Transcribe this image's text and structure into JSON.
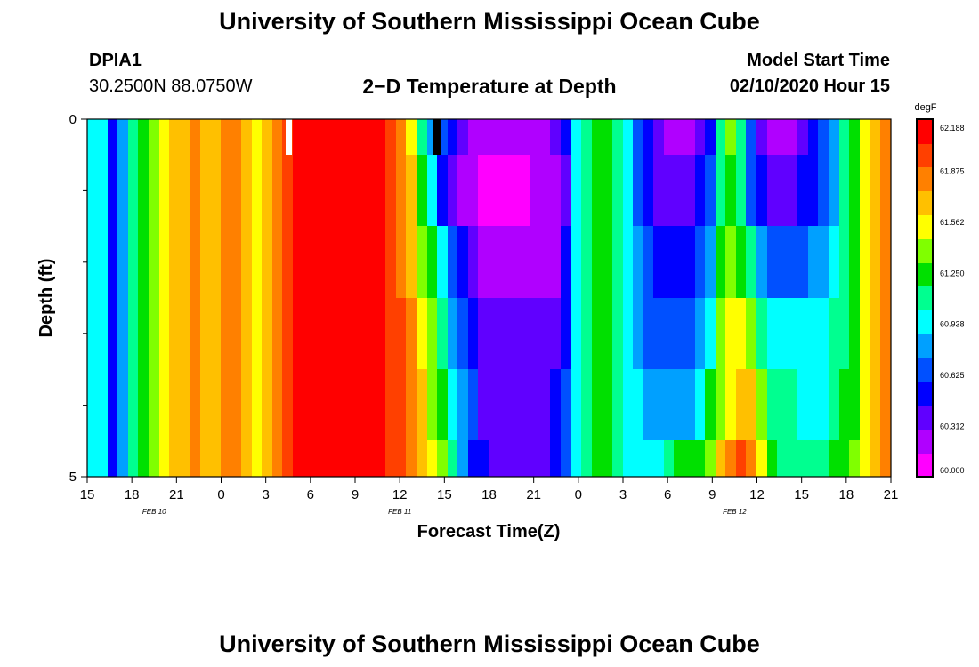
{
  "header": {
    "title": "University of Southern Mississippi Ocean Cube",
    "station_id": "DPIA1",
    "coords": "30.2500N 88.0750W",
    "subtitle": "2−D Temperature at Depth",
    "model_label": "Model Start Time",
    "model_time": "02/10/2020 Hour 15"
  },
  "footer": {
    "title": "University of Southern Mississippi Ocean Cube"
  },
  "chart_data": {
    "type": "heatmap",
    "title": "2−D Temperature at Depth",
    "xlabel": "Forecast Time(Z)",
    "ylabel": "Depth (ft)",
    "x_tick_labels": [
      "15",
      "18",
      "21",
      "0",
      "3",
      "6",
      "9",
      "12",
      "15",
      "18",
      "21",
      "0",
      "3",
      "6",
      "9",
      "12",
      "15",
      "18",
      "21"
    ],
    "x_ticks_hours": [
      0,
      3,
      6,
      9,
      12,
      15,
      18,
      21,
      24,
      27,
      30,
      33,
      36,
      39,
      42,
      45,
      48,
      51,
      54
    ],
    "x_range_hours": [
      0,
      54
    ],
    "date_labels": [
      {
        "text": "FEB 10",
        "hour": 4.5
      },
      {
        "text": "FEB 11",
        "hour": 21
      },
      {
        "text": "FEB 12",
        "hour": 43.5
      }
    ],
    "y_tick_labels": [
      "0",
      "5"
    ],
    "y_range": [
      0,
      5
    ],
    "y_minor_ticks": [
      1,
      2,
      3,
      4
    ],
    "depth_levels": [
      0,
      0.5,
      1.5,
      2.5,
      3.5,
      4.5
    ],
    "colorbar": {
      "unit": "degF",
      "min": 60.0,
      "max": 62.188,
      "tick_labels": [
        "62.188",
        "61.875",
        "61.562",
        "61.250",
        "60.938",
        "60.625",
        "60.312",
        "60.000"
      ],
      "tick_values": [
        62.188,
        61.875,
        61.562,
        61.25,
        60.938,
        60.625,
        60.312,
        60.0
      ],
      "colors": [
        "#ff00ff",
        "#b000ff",
        "#6000ff",
        "#0000ff",
        "#0050ff",
        "#00a0ff",
        "#00ffff",
        "#00ff90",
        "#00e000",
        "#80ff00",
        "#ffff00",
        "#ffc000",
        "#ff8000",
        "#ff4000",
        "#ff0000"
      ]
    },
    "columns": [
      [
        6,
        6,
        6,
        6,
        6,
        6
      ],
      [
        6,
        6,
        6,
        6,
        6,
        6
      ],
      [
        3,
        3,
        3,
        3,
        3,
        3
      ],
      [
        5,
        5,
        5,
        5,
        5,
        5
      ],
      [
        7,
        7,
        7,
        7,
        7,
        7
      ],
      [
        8,
        8,
        8,
        8,
        8,
        8
      ],
      [
        9,
        9,
        9,
        9,
        9,
        9
      ],
      [
        10,
        10,
        10,
        10,
        10,
        10
      ],
      [
        11,
        11,
        11,
        11,
        11,
        11
      ],
      [
        11,
        11,
        11,
        11,
        11,
        11
      ],
      [
        12,
        12,
        12,
        12,
        12,
        12
      ],
      [
        11,
        11,
        11,
        11,
        11,
        11
      ],
      [
        11,
        11,
        11,
        11,
        11,
        11
      ],
      [
        12,
        12,
        12,
        12,
        12,
        12
      ],
      [
        12,
        12,
        12,
        12,
        12,
        12
      ],
      [
        11,
        11,
        11,
        11,
        11,
        11
      ],
      [
        10,
        10,
        10,
        10,
        10,
        10
      ],
      [
        11,
        11,
        11,
        11,
        11,
        11
      ],
      [
        12,
        12,
        12,
        12,
        12,
        12
      ],
      [
        13,
        13,
        13,
        13,
        13,
        13
      ],
      [
        14,
        14,
        14,
        14,
        14,
        14
      ],
      [
        14,
        14,
        14,
        14,
        14,
        14
      ],
      [
        14,
        14,
        14,
        14,
        14,
        14
      ],
      [
        14,
        14,
        14,
        14,
        14,
        14
      ],
      [
        14,
        14,
        14,
        14,
        14,
        14
      ],
      [
        14,
        14,
        14,
        14,
        14,
        14
      ],
      [
        14,
        14,
        14,
        14,
        14,
        14
      ],
      [
        14,
        14,
        14,
        14,
        14,
        14
      ],
      [
        14,
        14,
        14,
        14,
        14,
        14
      ],
      [
        13,
        13,
        13,
        13,
        13,
        13
      ],
      [
        12,
        12,
        12,
        13,
        13,
        13
      ],
      [
        10,
        11,
        11,
        12,
        12,
        12
      ],
      [
        7,
        8,
        9,
        10,
        11,
        11
      ],
      [
        5,
        6,
        8,
        9,
        9,
        10
      ],
      [
        4,
        3,
        6,
        7,
        8,
        9
      ],
      [
        3,
        2,
        4,
        5,
        6,
        7
      ],
      [
        2,
        1,
        3,
        4,
        5,
        5
      ],
      [
        1,
        1,
        2,
        3,
        4,
        3
      ],
      [
        1,
        0,
        1,
        2,
        2,
        3
      ],
      [
        1,
        0,
        1,
        2,
        2,
        2
      ],
      [
        1,
        0,
        1,
        2,
        2,
        2
      ],
      [
        1,
        0,
        1,
        2,
        2,
        2
      ],
      [
        1,
        0,
        1,
        2,
        2,
        2
      ],
      [
        1,
        1,
        1,
        2,
        2,
        2
      ],
      [
        1,
        1,
        1,
        2,
        2,
        2
      ],
      [
        2,
        1,
        1,
        2,
        3,
        3
      ],
      [
        3,
        2,
        3,
        3,
        4,
        4
      ],
      [
        6,
        6,
        6,
        6,
        6,
        6
      ],
      [
        7,
        7,
        7,
        7,
        7,
        7
      ],
      [
        8,
        8,
        8,
        8,
        8,
        8
      ],
      [
        8,
        8,
        8,
        8,
        8,
        8
      ],
      [
        7,
        7,
        7,
        7,
        7,
        7
      ],
      [
        6,
        6,
        6,
        6,
        6,
        6
      ],
      [
        4,
        4,
        5,
        5,
        6,
        6
      ],
      [
        3,
        3,
        4,
        4,
        5,
        6
      ],
      [
        2,
        2,
        3,
        4,
        5,
        6
      ],
      [
        1,
        2,
        3,
        4,
        5,
        7
      ],
      [
        1,
        2,
        3,
        4,
        5,
        8
      ],
      [
        1,
        2,
        3,
        4,
        5,
        8
      ],
      [
        2,
        3,
        4,
        5,
        6,
        8
      ],
      [
        3,
        4,
        5,
        6,
        8,
        9
      ],
      [
        7,
        7,
        8,
        9,
        9,
        11
      ],
      [
        9,
        8,
        9,
        10,
        10,
        12
      ],
      [
        7,
        7,
        8,
        10,
        11,
        13
      ],
      [
        4,
        4,
        7,
        9,
        11,
        12
      ],
      [
        2,
        3,
        5,
        7,
        9,
        10
      ],
      [
        1,
        2,
        4,
        6,
        7,
        8
      ],
      [
        1,
        2,
        4,
        6,
        7,
        7
      ],
      [
        1,
        2,
        4,
        6,
        7,
        7
      ],
      [
        2,
        3,
        4,
        6,
        6,
        7
      ],
      [
        3,
        3,
        5,
        6,
        6,
        7
      ],
      [
        4,
        4,
        5,
        6,
        6,
        7
      ],
      [
        5,
        5,
        6,
        7,
        7,
        8
      ],
      [
        7,
        7,
        7,
        7,
        8,
        8
      ],
      [
        8,
        8,
        8,
        8,
        8,
        9
      ],
      [
        10,
        10,
        10,
        10,
        10,
        10
      ],
      [
        11,
        11,
        11,
        11,
        11,
        11
      ],
      [
        12,
        12,
        12,
        12,
        12,
        12
      ]
    ]
  }
}
